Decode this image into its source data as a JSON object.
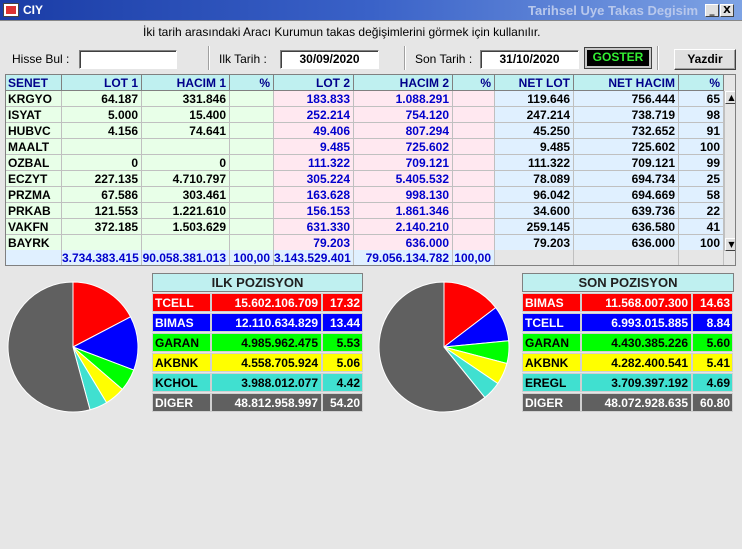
{
  "window": {
    "title_left": "CIY",
    "title_right": "Tarihsel Uye Takas Degisim",
    "buttons": [
      "_",
      "□",
      "X"
    ]
  },
  "subtitle": "İki tarih arasındaki  Aracı Kurumun takas değişimlerini görmek için kullanılır.",
  "filters": {
    "hisse_label": "Hisse Bul :",
    "hisse_value": "",
    "ilk_label": "Ilk Tarih :",
    "ilk_value": "30/09/2020",
    "son_label": "Son Tarih :",
    "son_value": "31/10/2020",
    "goster": "GOSTER",
    "yazdir": "Yazdir"
  },
  "grid": {
    "headers": [
      "SENET",
      "LOT 1",
      "HACIM 1",
      "%",
      "LOT 2",
      "HACIM 2",
      "%",
      "NET LOT",
      "NET HACIM",
      "%"
    ],
    "rows": [
      [
        "KRGYO",
        "64.187",
        "331.846",
        "",
        "183.833",
        "1.088.291",
        "",
        "119.646",
        "756.444",
        "65"
      ],
      [
        "ISYAT",
        "5.000",
        "15.400",
        "",
        "252.214",
        "754.120",
        "",
        "247.214",
        "738.719",
        "98"
      ],
      [
        "HUBVC",
        "4.156",
        "74.641",
        "",
        "49.406",
        "807.294",
        "",
        "45.250",
        "732.652",
        "91"
      ],
      [
        "MAALT",
        "",
        "",
        "",
        "9.485",
        "725.602",
        "",
        "9.485",
        "725.602",
        "100"
      ],
      [
        "OZBAL",
        "0",
        "0",
        "",
        "111.322",
        "709.121",
        "",
        "111.322",
        "709.121",
        "99"
      ],
      [
        "ECZYT",
        "227.135",
        "4.710.797",
        "",
        "305.224",
        "5.405.532",
        "",
        "78.089",
        "694.734",
        "25"
      ],
      [
        "PRZMA",
        "67.586",
        "303.461",
        "",
        "163.628",
        "998.130",
        "",
        "96.042",
        "694.669",
        "58"
      ],
      [
        "PRKAB",
        "121.553",
        "1.221.610",
        "",
        "156.153",
        "1.861.346",
        "",
        "34.600",
        "639.736",
        "22"
      ],
      [
        "VAKFN",
        "372.185",
        "1.503.629",
        "",
        "631.330",
        "2.140.210",
        "",
        "259.145",
        "636.580",
        "41"
      ],
      [
        "BAYRK",
        "",
        "",
        "",
        "79.203",
        "636.000",
        "",
        "79.203",
        "636.000",
        "100"
      ]
    ],
    "summary": [
      "",
      "3.734.383.415",
      "90.058.381.013",
      "100,00",
      "3.143.529.401",
      "79.056.134.782",
      "100,00",
      "",
      "",
      ""
    ]
  },
  "ilk_pozisyon": {
    "title": "ILK POZISYON",
    "items": [
      {
        "name": "TCELL",
        "value": "15.602.106.709",
        "pct": "17.32",
        "bg": "#ff0000",
        "fg": "#ffffff",
        "share": 17.32
      },
      {
        "name": "BIMAS",
        "value": "12.110.634.829",
        "pct": "13.44",
        "bg": "#0000ff",
        "fg": "#ffffff",
        "share": 13.44
      },
      {
        "name": "GARAN",
        "value": "4.985.962.475",
        "pct": "5.53",
        "bg": "#00ff00",
        "fg": "#000000",
        "share": 5.53
      },
      {
        "name": "AKBNK",
        "value": "4.558.705.924",
        "pct": "5.06",
        "bg": "#ffff00",
        "fg": "#000000",
        "share": 5.06
      },
      {
        "name": "KCHOL",
        "value": "3.988.012.077",
        "pct": "4.42",
        "bg": "#40e0d0",
        "fg": "#000000",
        "share": 4.42
      },
      {
        "name": "DIGER",
        "value": "48.812.958.997",
        "pct": "54.20",
        "bg": "#606060",
        "fg": "#ffffff",
        "share": 54.2
      }
    ]
  },
  "son_pozisyon": {
    "title": "SON POZISYON",
    "items": [
      {
        "name": "BIMAS",
        "value": "11.568.007.300",
        "pct": "14.63",
        "bg": "#ff0000",
        "fg": "#ffffff",
        "share": 14.63
      },
      {
        "name": "TCELL",
        "value": "6.993.015.885",
        "pct": "8.84",
        "bg": "#0000ff",
        "fg": "#ffffff",
        "share": 8.84
      },
      {
        "name": "GARAN",
        "value": "4.430.385.226",
        "pct": "5.60",
        "bg": "#00ff00",
        "fg": "#000000",
        "share": 5.6
      },
      {
        "name": "AKBNK",
        "value": "4.282.400.541",
        "pct": "5.41",
        "bg": "#ffff00",
        "fg": "#000000",
        "share": 5.41
      },
      {
        "name": "EREGL",
        "value": "3.709.397.192",
        "pct": "4.69",
        "bg": "#40e0d0",
        "fg": "#000000",
        "share": 4.69
      },
      {
        "name": "DIGER",
        "value": "48.072.928.635",
        "pct": "60.80",
        "bg": "#606060",
        "fg": "#ffffff",
        "share": 60.8
      }
    ]
  }
}
